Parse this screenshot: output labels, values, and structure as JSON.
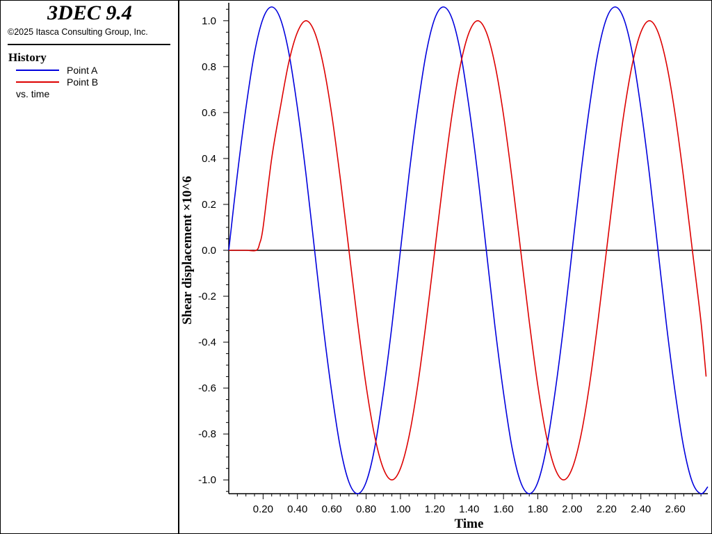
{
  "header": {
    "app_title": "3DEC 9.4",
    "copyright": "©2025 Itasca Consulting Group, Inc."
  },
  "legend": {
    "title": "History",
    "items": [
      {
        "label": "Point A",
        "color": "#0000dd"
      },
      {
        "label": "Point B",
        "color": "#dd0000"
      }
    ],
    "vs_label": "vs. time"
  },
  "chart_data": {
    "type": "line",
    "title": "",
    "xlabel": "Time",
    "ylabel": "Shear displacement ×10^6",
    "xlim": [
      0.0,
      2.79
    ],
    "ylim": [
      -1.06,
      1.06
    ],
    "x_ticks": [
      "0.20",
      "0.40",
      "0.60",
      "0.80",
      "1.00",
      "1.20",
      "1.40",
      "1.60",
      "1.80",
      "2.00",
      "2.20",
      "2.40",
      "2.60"
    ],
    "y_ticks": [
      "1.0",
      "0.8",
      "0.6",
      "0.4",
      "0.2",
      "0.0",
      "-0.2",
      "-0.4",
      "-0.6",
      "-0.8",
      "-1.0"
    ],
    "zero_line": true,
    "grid": false,
    "legend_position": "left-panel",
    "series": [
      {
        "name": "Point A",
        "color": "#0000dd",
        "x": [
          0.0,
          0.05,
          0.1,
          0.15,
          0.2,
          0.25,
          0.3,
          0.35,
          0.4,
          0.45,
          0.5,
          0.55,
          0.6,
          0.65,
          0.7,
          0.75,
          0.8,
          0.85,
          0.9,
          0.95,
          1.0,
          1.05,
          1.1,
          1.15,
          1.2,
          1.25,
          1.3,
          1.35,
          1.4,
          1.45,
          1.5,
          1.55,
          1.6,
          1.65,
          1.7,
          1.75,
          1.8,
          1.85,
          1.9,
          1.95,
          2.0,
          2.05,
          2.1,
          2.15,
          2.2,
          2.25,
          2.3,
          2.35,
          2.4,
          2.45,
          2.5,
          2.55,
          2.6,
          2.65,
          2.7,
          2.75,
          2.79
        ],
        "y": [
          0.0,
          0.33,
          0.62,
          0.86,
          1.01,
          1.06,
          1.01,
          0.86,
          0.62,
          0.33,
          0.0,
          -0.33,
          -0.62,
          -0.86,
          -1.01,
          -1.06,
          -1.01,
          -0.86,
          -0.62,
          -0.33,
          0.0,
          0.33,
          0.62,
          0.86,
          1.01,
          1.06,
          1.01,
          0.86,
          0.62,
          0.33,
          0.0,
          -0.33,
          -0.62,
          -0.86,
          -1.01,
          -1.06,
          -1.01,
          -0.86,
          -0.62,
          -0.33,
          0.0,
          0.33,
          0.62,
          0.86,
          1.01,
          1.06,
          1.01,
          0.86,
          0.62,
          0.33,
          0.0,
          -0.33,
          -0.62,
          -0.86,
          -1.01,
          -1.06,
          -1.03
        ]
      },
      {
        "name": "Point B",
        "color": "#dd0000",
        "x": [
          0.0,
          0.1,
          0.16,
          0.18,
          0.2,
          0.25,
          0.3,
          0.35,
          0.4,
          0.45,
          0.5,
          0.55,
          0.6,
          0.65,
          0.7,
          0.75,
          0.8,
          0.85,
          0.9,
          0.95,
          1.0,
          1.05,
          1.1,
          1.15,
          1.2,
          1.25,
          1.3,
          1.35,
          1.4,
          1.45,
          1.5,
          1.55,
          1.6,
          1.65,
          1.7,
          1.75,
          1.8,
          1.85,
          1.9,
          1.95,
          2.0,
          2.05,
          2.1,
          2.15,
          2.2,
          2.25,
          2.3,
          2.35,
          2.4,
          2.45,
          2.5,
          2.55,
          2.6,
          2.65,
          2.7,
          2.75,
          2.78
        ],
        "y": [
          0.0,
          0.0,
          0.0,
          0.03,
          0.1,
          0.4,
          0.62,
          0.82,
          0.95,
          1.0,
          0.95,
          0.81,
          0.59,
          0.31,
          0.0,
          -0.31,
          -0.59,
          -0.81,
          -0.95,
          -1.0,
          -0.95,
          -0.81,
          -0.59,
          -0.31,
          0.0,
          0.31,
          0.59,
          0.81,
          0.95,
          1.0,
          0.95,
          0.81,
          0.59,
          0.31,
          0.0,
          -0.31,
          -0.59,
          -0.81,
          -0.95,
          -1.0,
          -0.95,
          -0.81,
          -0.59,
          -0.31,
          0.0,
          0.31,
          0.59,
          0.81,
          0.95,
          1.0,
          0.95,
          0.81,
          0.59,
          0.31,
          0.0,
          -0.31,
          -0.55
        ]
      }
    ]
  }
}
